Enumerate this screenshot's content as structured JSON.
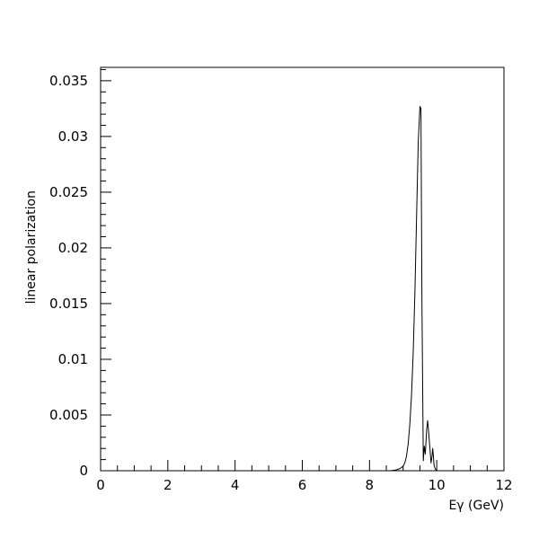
{
  "chart_data": {
    "type": "line",
    "title": "",
    "xlabel": "Eγ (GeV)",
    "ylabel": "linear polarization",
    "xlim": [
      0,
      12
    ],
    "ylim": [
      0,
      0.0362
    ],
    "grid": false,
    "x_ticks": [
      "0",
      "2",
      "4",
      "6",
      "8",
      "10",
      "12"
    ],
    "y_ticks": [
      "0",
      "0.005",
      "0.01",
      "0.015",
      "0.02",
      "0.025",
      "0.03",
      "0.035"
    ],
    "series": [
      {
        "x": [
          0.0,
          8.5,
          8.6,
          8.7,
          8.8,
          8.9,
          9.0,
          9.05,
          9.1,
          9.15,
          9.2,
          9.25,
          9.3,
          9.35,
          9.4,
          9.45,
          9.5,
          9.53,
          9.56,
          9.6,
          9.63,
          9.66,
          9.7,
          9.73,
          9.76,
          9.8,
          9.83,
          9.86,
          9.88,
          9.9,
          9.92,
          9.94,
          9.97,
          10.0,
          12.0
        ],
        "y": [
          0.0,
          0.0,
          0.0,
          3e-05,
          8e-05,
          0.00018,
          0.0004,
          0.0007,
          0.0013,
          0.0024,
          0.0042,
          0.0068,
          0.0106,
          0.016,
          0.0228,
          0.0295,
          0.0327,
          0.0325,
          0.015,
          0.0009,
          0.0022,
          0.0015,
          0.0037,
          0.0045,
          0.0034,
          0.0019,
          0.0007,
          0.0013,
          0.002,
          0.0013,
          0.0005,
          0.0003,
          0.0001,
          0.0,
          0.0
        ],
        "color": "#000000"
      }
    ]
  }
}
